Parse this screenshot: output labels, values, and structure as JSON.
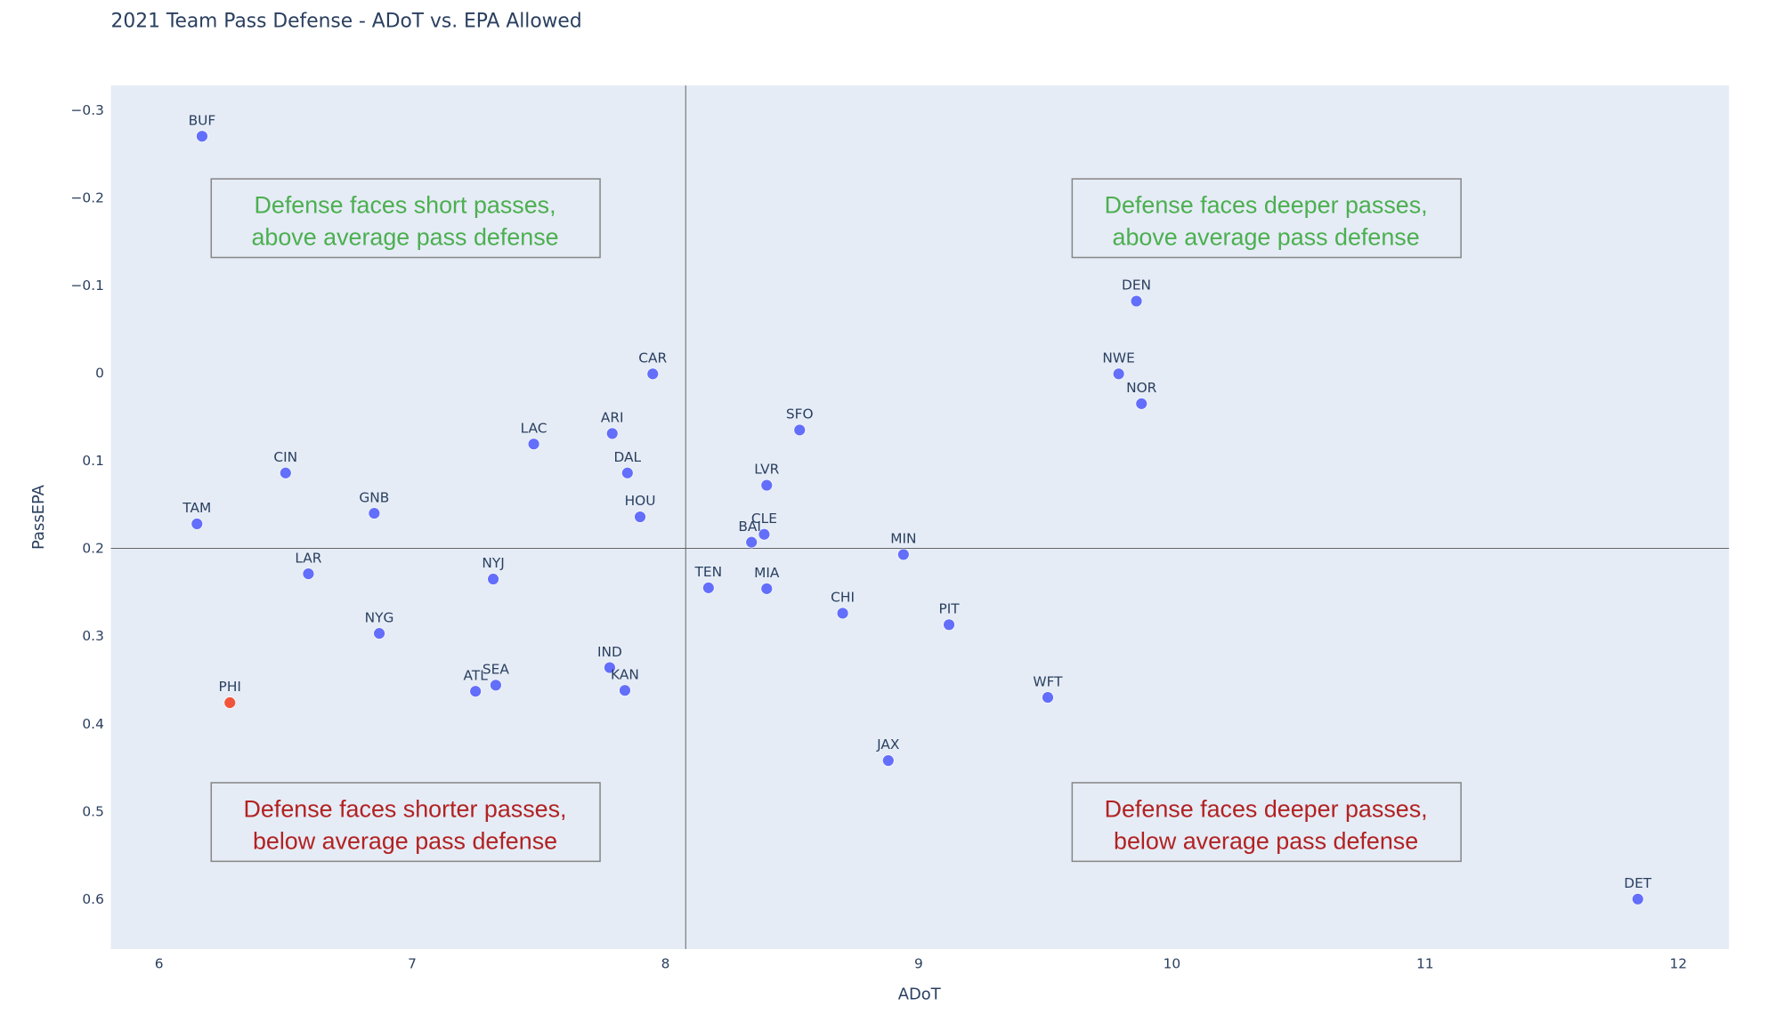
{
  "chart_data": {
    "type": "scatter",
    "title": "2021 Team Pass Defense - ADoT vs. EPA Allowed",
    "xlabel": "ADoT",
    "ylabel": "PassEPA",
    "xlim": [
      5.81,
      12.2
    ],
    "ylim": [
      0.657,
      -0.328
    ],
    "y_reversed": true,
    "grid": false,
    "plot_bg": "#e5ecf6",
    "x_ticks": [
      "6",
      "7",
      "8",
      "9",
      "10",
      "11",
      "12"
    ],
    "y_ticks": [
      "−0.3",
      "−0.2",
      "−0.1",
      "0",
      "0.1",
      "0.2",
      "0.3",
      "0.4",
      "0.5",
      "0.6"
    ],
    "point_color": "#636efa",
    "highlight_color": "#ef553b",
    "reference_lines": {
      "x": 8.08,
      "y": 0.2
    },
    "points": [
      {
        "team": "BUF",
        "x": 6.17,
        "y": -0.27
      },
      {
        "team": "TAM",
        "x": 6.15,
        "y": 0.172
      },
      {
        "team": "CIN",
        "x": 6.5,
        "y": 0.114
      },
      {
        "team": "LAR",
        "x": 6.59,
        "y": 0.229
      },
      {
        "team": "PHI",
        "x": 6.28,
        "y": 0.376,
        "highlight": true
      },
      {
        "team": "GNB",
        "x": 6.85,
        "y": 0.16
      },
      {
        "team": "NYG",
        "x": 6.87,
        "y": 0.297
      },
      {
        "team": "NYJ",
        "x": 7.32,
        "y": 0.235
      },
      {
        "team": "ATL",
        "x": 7.25,
        "y": 0.363
      },
      {
        "team": "SEA",
        "x": 7.33,
        "y": 0.356
      },
      {
        "team": "LAC",
        "x": 7.48,
        "y": 0.081
      },
      {
        "team": "ARI",
        "x": 7.79,
        "y": 0.069
      },
      {
        "team": "DAL",
        "x": 7.85,
        "y": 0.114
      },
      {
        "team": "CAR",
        "x": 7.95,
        "y": 0.001
      },
      {
        "team": "HOU",
        "x": 7.9,
        "y": 0.164
      },
      {
        "team": "IND",
        "x": 7.78,
        "y": 0.336
      },
      {
        "team": "KAN",
        "x": 7.84,
        "y": 0.362
      },
      {
        "team": "TEN",
        "x": 8.17,
        "y": 0.245
      },
      {
        "team": "BAL",
        "x": 8.34,
        "y": 0.193
      },
      {
        "team": "CLE",
        "x": 8.39,
        "y": 0.184
      },
      {
        "team": "LVR",
        "x": 8.4,
        "y": 0.128
      },
      {
        "team": "MIA",
        "x": 8.4,
        "y": 0.246
      },
      {
        "team": "SFO",
        "x": 8.53,
        "y": 0.065
      },
      {
        "team": "CHI",
        "x": 8.7,
        "y": 0.274
      },
      {
        "team": "MIN",
        "x": 8.94,
        "y": 0.207
      },
      {
        "team": "PIT",
        "x": 9.12,
        "y": 0.287
      },
      {
        "team": "JAX",
        "x": 8.88,
        "y": 0.442
      },
      {
        "team": "WFT",
        "x": 9.51,
        "y": 0.37
      },
      {
        "team": "DEN",
        "x": 9.86,
        "y": -0.082
      },
      {
        "team": "NWE",
        "x": 9.79,
        "y": 0.001
      },
      {
        "team": "NOR",
        "x": 9.88,
        "y": 0.035
      },
      {
        "team": "DET",
        "x": 11.84,
        "y": 0.6
      }
    ],
    "annotations": {
      "top_left": {
        "line1": "Defense faces short passes,",
        "line2": "above average pass defense",
        "color": "#4caf50"
      },
      "top_right": {
        "line1": "Defense faces deeper passes,",
        "line2": "above average pass defense",
        "color": "#4caf50"
      },
      "bottom_left": {
        "line1": "Defense faces shorter passes,",
        "line2": "below average pass defense",
        "color": "#b22222"
      },
      "bottom_right": {
        "line1": "Defense faces deeper passes,",
        "line2": "below average pass defense",
        "color": "#b22222"
      }
    }
  }
}
